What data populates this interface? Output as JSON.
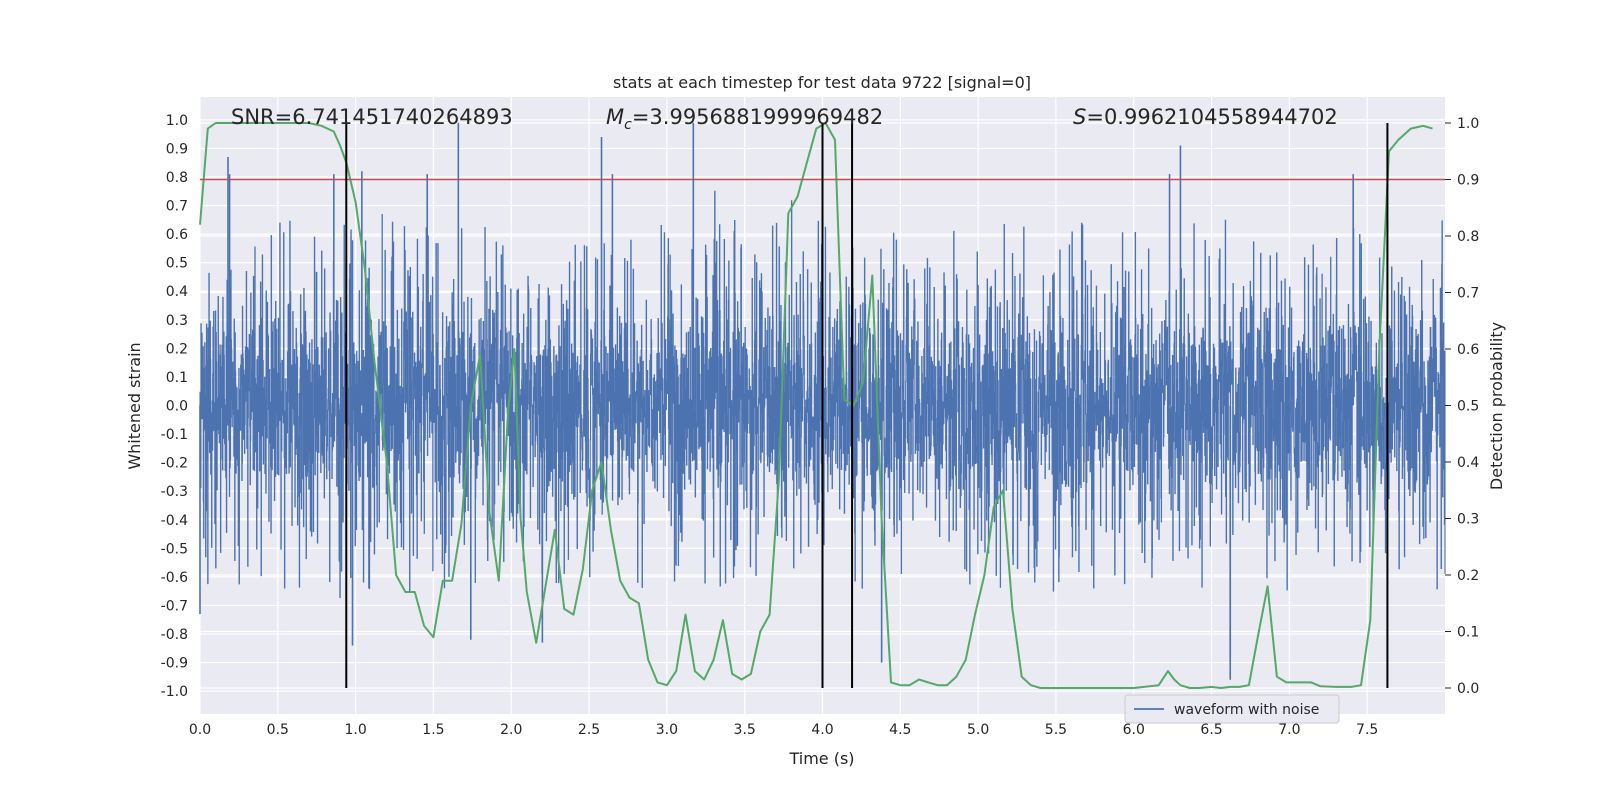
{
  "chart_data": {
    "type": "line",
    "title": "stats at each timestep for test data 9722 [signal=0]",
    "xlabel": "Time (s)",
    "ylabel": "Whitened strain",
    "y2label": "Detection probability",
    "xlim": [
      0.0,
      8.0
    ],
    "ylim": [
      -1.08,
      1.08
    ],
    "y2lim": [
      -0.046,
      1.046
    ],
    "xticks": [
      "0.0",
      "0.5",
      "1.0",
      "1.5",
      "2.0",
      "2.5",
      "3.0",
      "3.5",
      "4.0",
      "4.5",
      "5.0",
      "5.5",
      "6.0",
      "6.5",
      "7.0",
      "7.5"
    ],
    "yticks": [
      "1.0",
      "0.9",
      "0.8",
      "0.7",
      "0.6",
      "0.5",
      "0.4",
      "0.3",
      "0.2",
      "0.1",
      "0.0",
      "-0.1",
      "-0.2",
      "-0.3",
      "-0.4",
      "-0.5",
      "-0.6",
      "-0.7",
      "-0.8",
      "-0.9",
      "-1.0"
    ],
    "y2ticks": [
      "1.0",
      "0.9",
      "0.8",
      "0.7",
      "0.6",
      "0.5",
      "0.4",
      "0.3",
      "0.2",
      "0.1",
      "0.0"
    ],
    "threshold": {
      "axis": "y2",
      "value": 0.9,
      "color": "#c44e52"
    },
    "vlines": {
      "x": [
        0.94,
        4.0,
        4.19,
        7.63
      ],
      "y2_range": [
        0.0,
        1.0
      ],
      "color": "#000000"
    },
    "annotations": {
      "snr": "SNR=6.741451740264893",
      "mc_symbol": "M",
      "mc_sub": "c",
      "mc_value": "=3.9956881999969482",
      "s_symbol": "S",
      "s_value": "=0.9962104558944702"
    },
    "legend": {
      "position": "bottom-right",
      "entries": [
        "waveform with noise"
      ]
    },
    "series": [
      {
        "name": "waveform with noise",
        "axis": "y",
        "color": "#4c72b0",
        "envelope_typical": [
          -0.45,
          0.45
        ],
        "notable_peaks": [
          {
            "x": 0.18,
            "y": 0.87
          },
          {
            "x": 0.19,
            "y": 0.81
          },
          {
            "x": 0.86,
            "y": 0.81
          },
          {
            "x": 1.04,
            "y": 0.82
          },
          {
            "x": 1.46,
            "y": 0.81
          },
          {
            "x": 1.66,
            "y": 0.99
          },
          {
            "x": 2.58,
            "y": 0.94
          },
          {
            "x": 2.65,
            "y": 0.81
          },
          {
            "x": 3.17,
            "y": 0.99
          },
          {
            "x": 6.3,
            "y": 0.91
          },
          {
            "x": 6.23,
            "y": 0.81
          },
          {
            "x": 7.41,
            "y": 0.81
          },
          {
            "x": 0.98,
            "y": -0.84
          },
          {
            "x": 1.74,
            "y": -0.82
          },
          {
            "x": 2.2,
            "y": -0.83
          },
          {
            "x": 4.38,
            "y": -0.9
          },
          {
            "x": 6.62,
            "y": -0.96
          },
          {
            "x": 6.62,
            "y": -0.88
          },
          {
            "x": 0.0,
            "y": -0.73
          }
        ]
      },
      {
        "name": "detection probability",
        "axis": "y2",
        "color": "#55a868",
        "x": [
          0.0,
          0.05,
          0.1,
          0.2,
          0.3,
          0.5,
          0.7,
          0.78,
          0.82,
          0.86,
          0.9,
          0.94,
          1.0,
          1.06,
          1.12,
          1.2,
          1.26,
          1.32,
          1.38,
          1.44,
          1.5,
          1.56,
          1.62,
          1.68,
          1.74,
          1.8,
          1.86,
          1.92,
          1.98,
          2.02,
          2.06,
          2.1,
          2.16,
          2.22,
          2.28,
          2.34,
          2.4,
          2.46,
          2.52,
          2.58,
          2.64,
          2.7,
          2.76,
          2.82,
          2.88,
          2.94,
          3.0,
          3.06,
          3.12,
          3.18,
          3.24,
          3.3,
          3.36,
          3.42,
          3.48,
          3.54,
          3.6,
          3.66,
          3.72,
          3.78,
          3.84,
          3.9,
          3.96,
          4.02,
          4.08,
          4.14,
          4.2,
          4.26,
          4.32,
          4.38,
          4.44,
          4.5,
          4.56,
          4.62,
          4.68,
          4.74,
          4.8,
          4.86,
          4.92,
          4.98,
          5.04,
          5.1,
          5.16,
          5.22,
          5.28,
          5.34,
          5.4,
          5.46,
          5.52,
          5.6,
          5.8,
          6.0,
          6.16,
          6.22,
          6.26,
          6.3,
          6.36,
          6.42,
          6.5,
          6.56,
          6.62,
          6.68,
          6.74,
          6.8,
          6.86,
          6.92,
          6.98,
          7.06,
          7.14,
          7.2,
          7.3,
          7.4,
          7.46,
          7.52,
          7.58,
          7.64,
          7.7,
          7.78,
          7.86,
          7.92
        ],
        "values": [
          0.82,
          0.99,
          1.0,
          1.0,
          1.0,
          1.0,
          1.0,
          0.995,
          0.99,
          0.985,
          0.96,
          0.93,
          0.86,
          0.74,
          0.58,
          0.4,
          0.2,
          0.17,
          0.17,
          0.11,
          0.09,
          0.19,
          0.19,
          0.29,
          0.5,
          0.59,
          0.31,
          0.19,
          0.49,
          0.6,
          0.3,
          0.17,
          0.08,
          0.18,
          0.28,
          0.14,
          0.13,
          0.21,
          0.35,
          0.4,
          0.28,
          0.19,
          0.16,
          0.15,
          0.05,
          0.01,
          0.005,
          0.03,
          0.13,
          0.03,
          0.015,
          0.05,
          0.12,
          0.025,
          0.015,
          0.025,
          0.1,
          0.13,
          0.37,
          0.84,
          0.87,
          0.93,
          0.99,
          1.0,
          0.97,
          0.51,
          0.5,
          0.54,
          0.73,
          0.3,
          0.01,
          0.005,
          0.005,
          0.015,
          0.01,
          0.005,
          0.005,
          0.02,
          0.05,
          0.13,
          0.2,
          0.32,
          0.35,
          0.14,
          0.02,
          0.005,
          0.0,
          0.0,
          0.0,
          0.0,
          0.0,
          0.0,
          0.005,
          0.03,
          0.015,
          0.005,
          0.0,
          0.0,
          0.002,
          0.0,
          0.002,
          0.002,
          0.005,
          0.095,
          0.18,
          0.02,
          0.01,
          0.01,
          0.01,
          0.003,
          0.002,
          0.002,
          0.005,
          0.12,
          0.61,
          0.95,
          0.97,
          0.99,
          0.995,
          0.99
        ]
      }
    ]
  }
}
